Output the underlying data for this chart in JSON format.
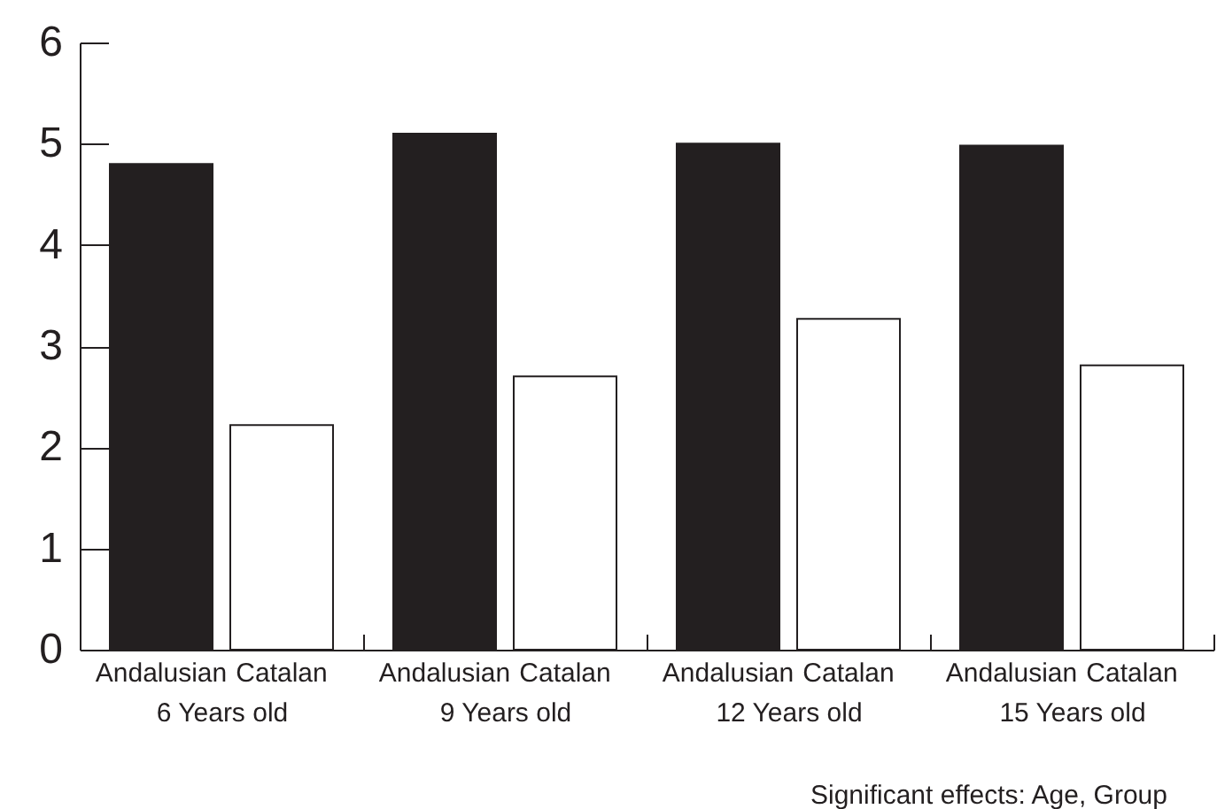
{
  "chart_data": {
    "type": "bar",
    "categories": [
      "6 Years old",
      "9 Years old",
      "12 Years old",
      "15 Years old"
    ],
    "series": [
      {
        "name": "Andalusian",
        "color": "#231f20",
        "values": [
          4.8,
          5.1,
          5.0,
          4.98
        ]
      },
      {
        "name": "Catalan",
        "color": "#ffffff",
        "values": [
          2.22,
          2.7,
          3.27,
          2.81
        ]
      }
    ],
    "ylim": [
      0,
      6
    ],
    "yticks": [
      0,
      1,
      2,
      3,
      4,
      5,
      6
    ],
    "grid": false,
    "legend": false,
    "annotations": [
      "Significant effects: Age, Group"
    ]
  }
}
